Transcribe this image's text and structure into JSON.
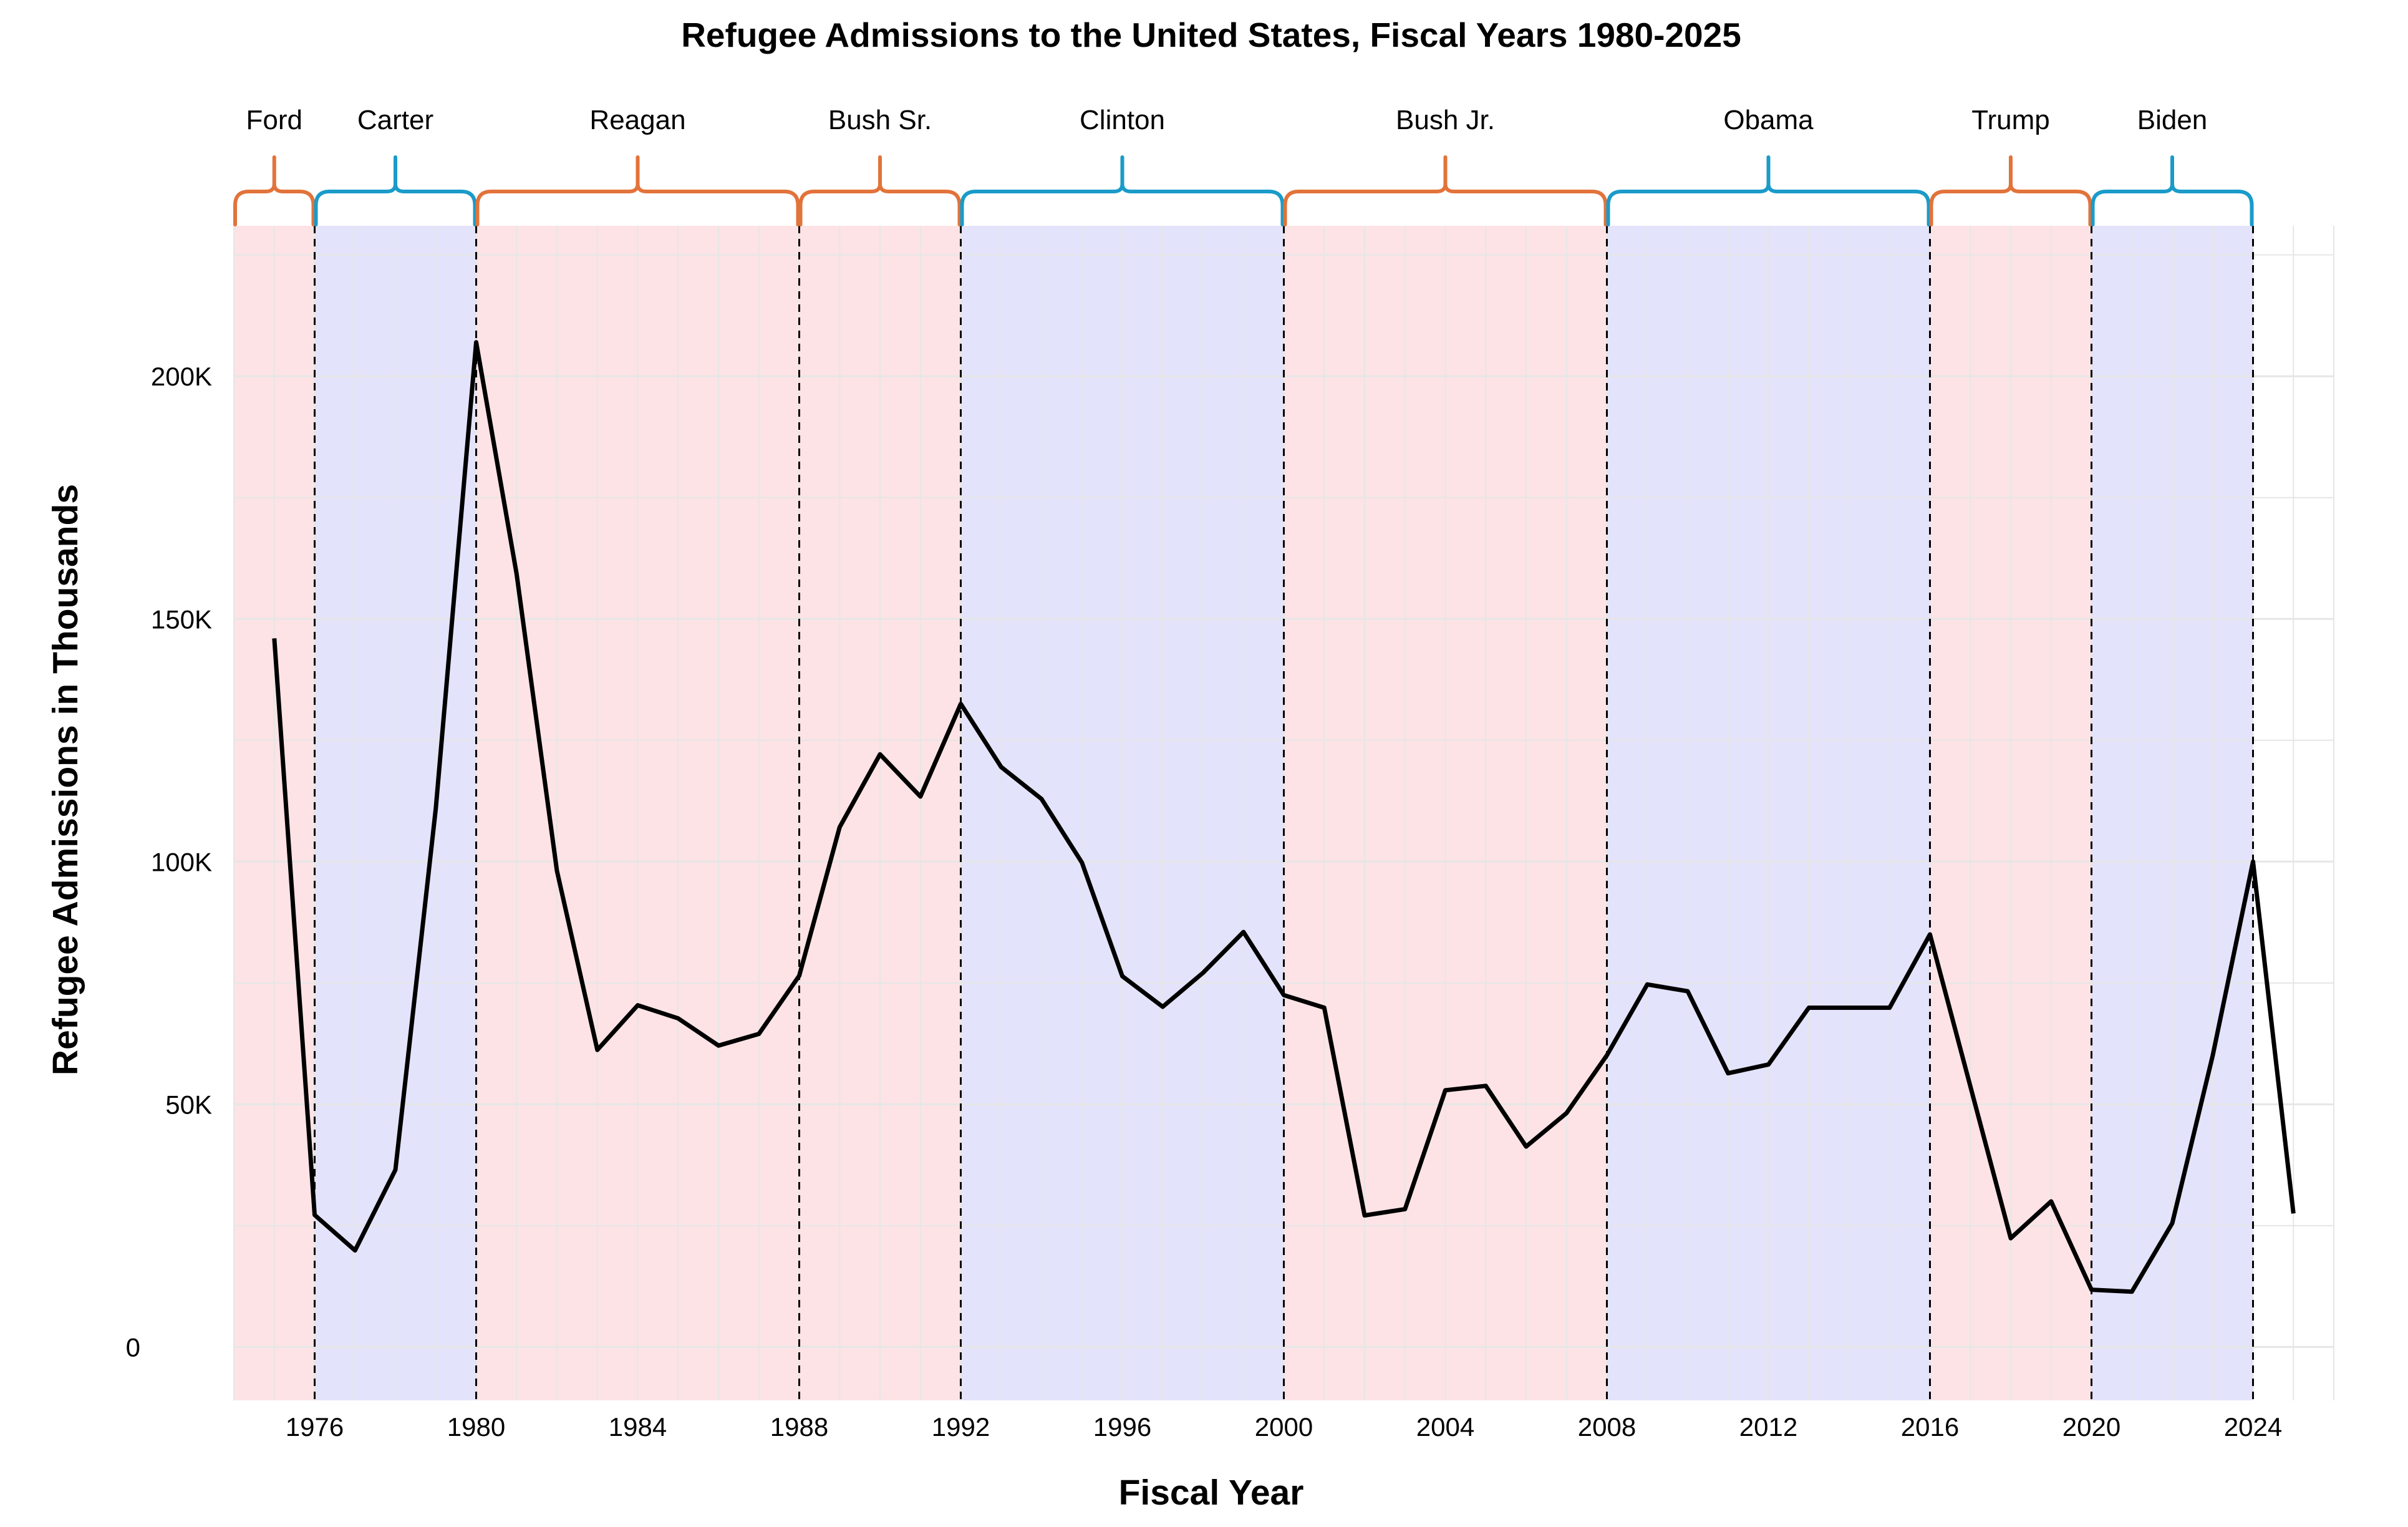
{
  "chart_data": {
    "type": "line",
    "title": "Refugee Admissions to the United States, Fiscal Years 1980-2025",
    "xlabel": "Fiscal Year",
    "ylabel": "Refugee Admissions in Thousands",
    "xlim": [
      1974,
      2026
    ],
    "ylim": [
      -11000,
      231000
    ],
    "x_ticks": [
      1976,
      1980,
      1984,
      1988,
      1992,
      1996,
      2000,
      2004,
      2008,
      2012,
      2016,
      2020,
      2024
    ],
    "x_tick_labels": [
      "1976",
      "1980",
      "1984",
      "1988",
      "1992",
      "1996",
      "2000",
      "2004",
      "2008",
      "2012",
      "2016",
      "2020",
      "2024"
    ],
    "y_ticks": [
      0,
      50000,
      100000,
      150000,
      200000
    ],
    "y_tick_labels": [
      "0",
      "50K",
      "100K",
      "150K",
      "200K"
    ],
    "grid": true,
    "series": [
      {
        "name": "Refugee Admissions",
        "color": "#000000",
        "x": [
          1975,
          1976,
          1977,
          1978,
          1979,
          1980,
          1981,
          1982,
          1983,
          1984,
          1985,
          1986,
          1987,
          1988,
          1989,
          1990,
          1991,
          1992,
          1993,
          1994,
          1995,
          1996,
          1997,
          1998,
          1999,
          2000,
          2001,
          2002,
          2003,
          2004,
          2005,
          2006,
          2007,
          2008,
          2009,
          2010,
          2011,
          2012,
          2013,
          2014,
          2015,
          2016,
          2017,
          2018,
          2019,
          2020,
          2021,
          2022,
          2023,
          2024,
          2025
        ],
        "values": [
          146000,
          27200,
          19900,
          36500,
          111000,
          207000,
          159300,
          98100,
          61200,
          70400,
          67700,
          62100,
          64500,
          76500,
          107100,
          122100,
          113400,
          132500,
          119500,
          112900,
          99800,
          76400,
          70100,
          77100,
          85500,
          72500,
          69900,
          27100,
          28400,
          52900,
          53800,
          41300,
          48200,
          60100,
          74700,
          73300,
          56400,
          58200,
          69900,
          69900,
          69900,
          85000,
          53700,
          22400,
          30000,
          11800,
          11400,
          25500,
          60000,
          100000,
          27500
        ]
      }
    ],
    "presidencies": [
      {
        "name": "Ford",
        "start": 1974,
        "end": 1976,
        "party": "R"
      },
      {
        "name": "Carter",
        "start": 1976,
        "end": 1980,
        "party": "D"
      },
      {
        "name": "Reagan",
        "start": 1980,
        "end": 1988,
        "party": "R"
      },
      {
        "name": "Bush Sr.",
        "start": 1988,
        "end": 1992,
        "party": "R"
      },
      {
        "name": "Clinton",
        "start": 1992,
        "end": 2000,
        "party": "D"
      },
      {
        "name": "Bush Jr.",
        "start": 2000,
        "end": 2008,
        "party": "R"
      },
      {
        "name": "Obama",
        "start": 2008,
        "end": 2016,
        "party": "D"
      },
      {
        "name": "Trump",
        "start": 2016,
        "end": 2020,
        "party": "R"
      },
      {
        "name": "Biden",
        "start": 2020,
        "end": 2024,
        "party": "D"
      }
    ],
    "party_colors": {
      "R": {
        "shade": "#fde3e5",
        "brace": "#e2733a"
      },
      "D": {
        "shade": "#e3e3fb",
        "brace": "#1a9bc9"
      }
    },
    "grid_color": "#e6e6e6",
    "divider_color": "#000000"
  }
}
